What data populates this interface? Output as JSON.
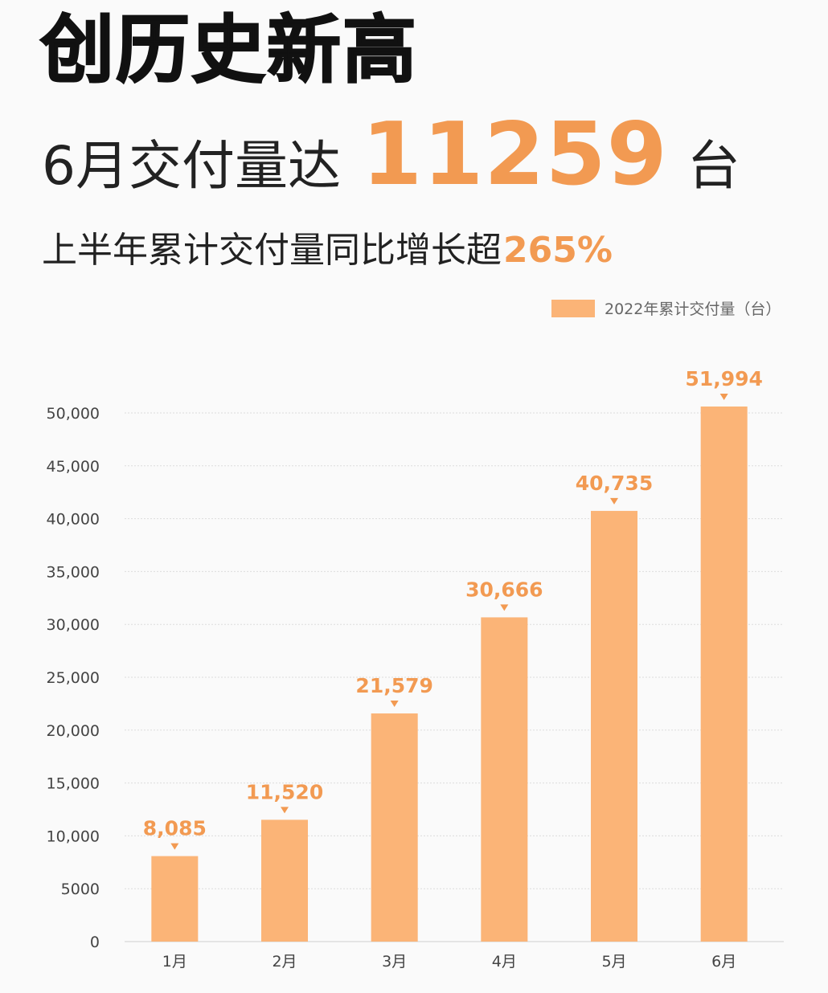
{
  "header": {
    "title": "创历史新高",
    "headline_prefix": "6月交付量达",
    "headline_number": "11259",
    "headline_unit": "台",
    "subline_text": "上半年累计交付量同比增长超",
    "subline_highlight": "265%"
  },
  "colors": {
    "accent": "#f29a52",
    "bar": "#fbb477",
    "grid": "#dcdcdc"
  },
  "chart_data": {
    "type": "bar",
    "categories": [
      "1月",
      "2月",
      "3月",
      "4月",
      "5月",
      "6月"
    ],
    "series": [
      {
        "name": "2022年累计交付量（台）",
        "values": [
          8085,
          11520,
          21579,
          30666,
          40735,
          51994
        ],
        "value_labels": [
          "8,085",
          "11,520",
          "21,579",
          "30,666",
          "40,735",
          "51,994"
        ]
      }
    ],
    "ylim": [
      0,
      50000
    ],
    "yticks": [
      0,
      5000,
      10000,
      15000,
      20000,
      25000,
      30000,
      35000,
      40000,
      45000,
      50000
    ],
    "ytick_labels": [
      "0",
      "5000",
      "10,000",
      "15,000",
      "20,000",
      "25,000",
      "30,000",
      "35,000",
      "40,000",
      "45,000",
      "50,000"
    ],
    "grid": true,
    "legend_position": "top-right",
    "xlabel": "",
    "ylabel": ""
  }
}
